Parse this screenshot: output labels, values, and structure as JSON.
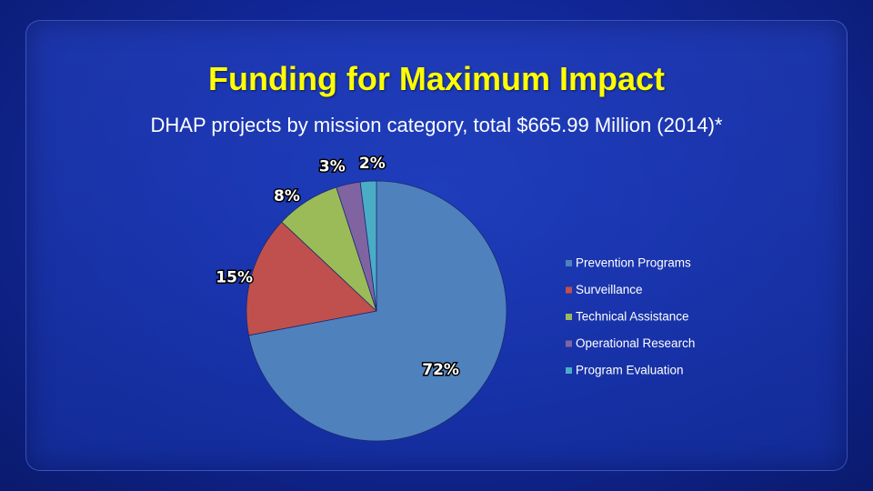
{
  "slide": {
    "title": "Funding for Maximum Impact",
    "subtitle": "DHAP projects by mission category, total $665.99 Million (2014)*"
  },
  "chart_data": {
    "type": "pie",
    "categories": [
      "Prevention Programs",
      "Surveillance",
      "Technical Assistance",
      "Operational Research",
      "Program Evaluation"
    ],
    "values": [
      72,
      15,
      8,
      3,
      2
    ],
    "labels": [
      "72%",
      "15%",
      "8%",
      "3%",
      "2%"
    ],
    "colors": [
      "#4f81bd",
      "#c0504d",
      "#9bbb59",
      "#8064a2",
      "#4bacc6"
    ],
    "legend_position": "right"
  }
}
